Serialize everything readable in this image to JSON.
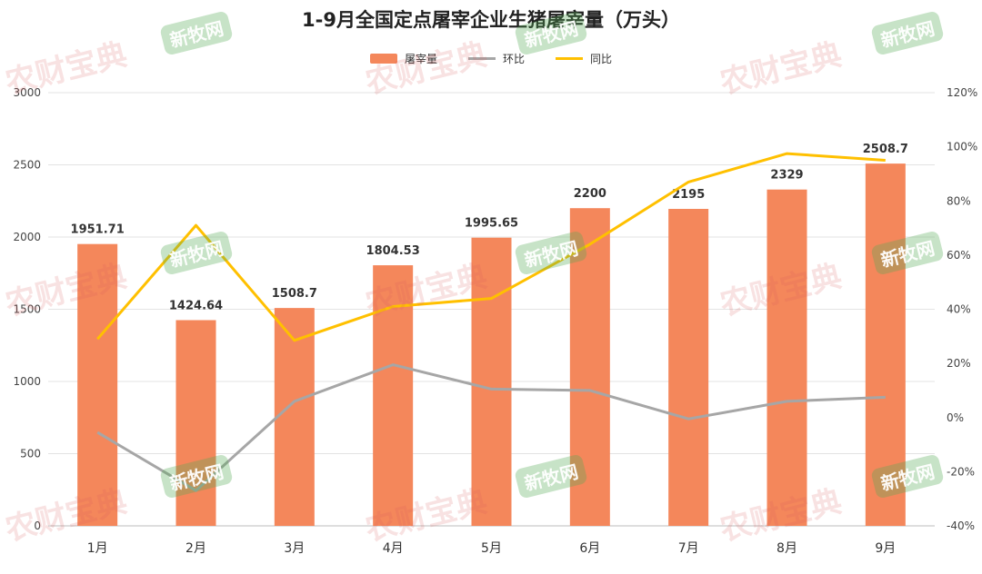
{
  "watermarks": {
    "brand_a": "农财宝典",
    "brand_b": "新牧网"
  },
  "colors": {
    "bar": "#F4875B",
    "mom": "#A6A6A6",
    "yoy": "#FFC000"
  },
  "chart_data": {
    "type": "bar",
    "title": "1-9月全国定点屠宰企业生猪屠宰量（万头）",
    "categories": [
      "1月",
      "2月",
      "3月",
      "4月",
      "5月",
      "6月",
      "7月",
      "8月",
      "9月"
    ],
    "series": [
      {
        "name": "屠宰量",
        "kind": "bar",
        "axis": "left",
        "values": [
          1951.71,
          1424.64,
          1508.7,
          1804.53,
          1995.65,
          2200,
          2195,
          2329,
          2508.7
        ],
        "labels": [
          "1951.71",
          "1424.64",
          "1508.7",
          "1804.53",
          "1995.65",
          "2200",
          "2195",
          "2329",
          "2508.7"
        ]
      },
      {
        "name": "环比",
        "kind": "line",
        "axis": "right",
        "values": [
          -5.5,
          -27,
          6,
          19.5,
          10.5,
          10,
          -0.5,
          6,
          7.5
        ]
      },
      {
        "name": "同比",
        "kind": "line",
        "axis": "right",
        "values": [
          29,
          71,
          28.5,
          41,
          44,
          64,
          87,
          97.5,
          95
        ]
      }
    ],
    "ylim_left": [
      0,
      3000
    ],
    "yticks_left": [
      "0",
      "500",
      "1000",
      "1500",
      "2000",
      "2500",
      "3000"
    ],
    "ylim_right": [
      -40,
      120
    ],
    "yticks_right": [
      "-40%",
      "-20%",
      "0%",
      "20%",
      "40%",
      "60%",
      "80%",
      "100%",
      "120%"
    ],
    "grid": true,
    "legend_position": "top-center"
  }
}
